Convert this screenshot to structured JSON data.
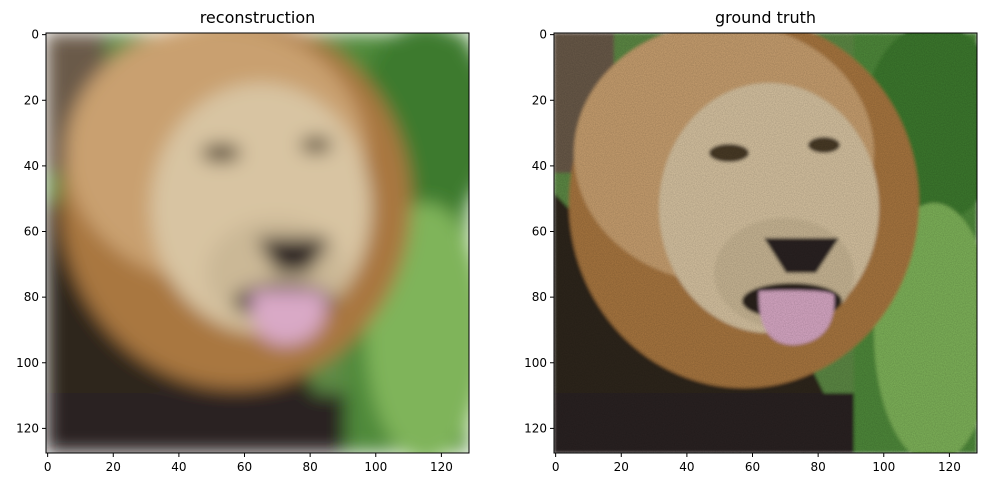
{
  "figure": {
    "panels": [
      {
        "title": "reconstruction",
        "image_description": "blurry low-detail reconstruction of a lion face with tongue out, green foliage at right",
        "xticks": [
          "0",
          "20",
          "40",
          "60",
          "80",
          "100",
          "120"
        ],
        "yticks": [
          "0",
          "20",
          "40",
          "60",
          "80",
          "100",
          "120"
        ]
      },
      {
        "title": "ground truth",
        "image_description": "sharp photo of a lion face with tongue out, dark mane at lower left, green grass at right",
        "xticks": [
          "0",
          "20",
          "40",
          "60",
          "80",
          "100",
          "120"
        ],
        "yticks": [
          "0",
          "20",
          "40",
          "60",
          "80",
          "100",
          "120"
        ]
      }
    ],
    "colors": {
      "mane_light": "#c9a070",
      "mane_mid": "#a9773f",
      "face": "#d8c4a2",
      "mane_dark": "#2e261f",
      "tongue": "#d9a9c6",
      "foliage": "#4f8a3a",
      "foliage_light": "#7fb45a"
    }
  }
}
